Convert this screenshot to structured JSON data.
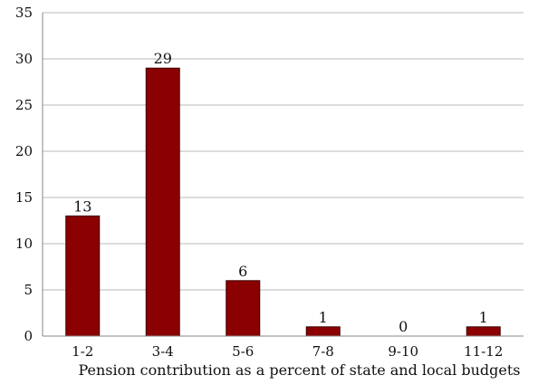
{
  "chart_data": {
    "type": "bar",
    "categories": [
      "1-2",
      "3-4",
      "5-6",
      "7-8",
      "9-10",
      "11-12"
    ],
    "values": [
      13,
      29,
      6,
      1,
      0,
      1
    ],
    "data_labels": [
      "13",
      "29",
      "6",
      "1",
      "0",
      "1"
    ],
    "xlabel": "Pension contribution as a percent of state and local budgets",
    "ylabel": "",
    "ylim": [
      0,
      35
    ],
    "yticks": [
      "0",
      "5",
      "10",
      "15",
      "20",
      "25",
      "30",
      "35"
    ],
    "bar_color": "#8b0000",
    "grid": true,
    "legend": "none"
  }
}
